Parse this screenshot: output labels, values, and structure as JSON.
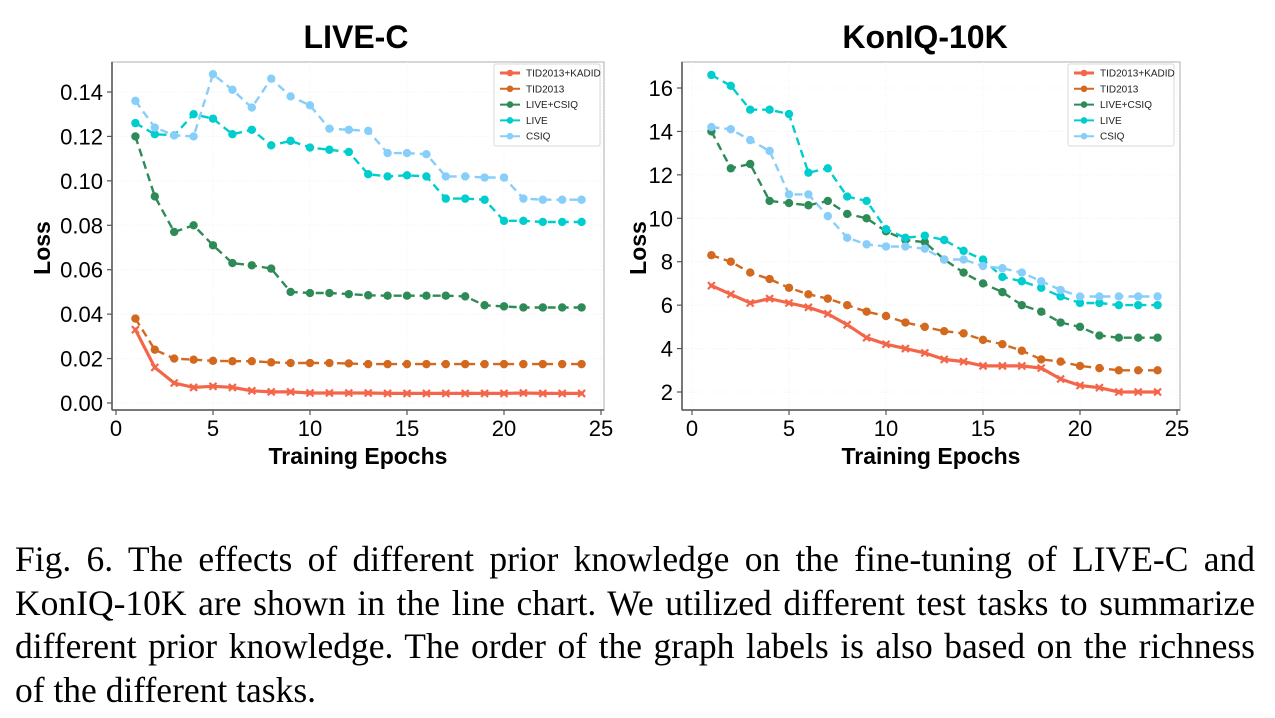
{
  "caption": "Fig. 6.  The effects of different prior knowledge on the fine-tuning of LIVE-C and KonIQ-10K are shown in the line chart. We utilized different test tasks to summarize different prior knowledge. The order of the graph labels is also based on the richness of the different tasks.",
  "chart_data": [
    {
      "type": "line",
      "title": "LIVE-C",
      "xlabel": "Training Epochs",
      "ylabel": "Loss",
      "xlim": [
        0,
        25
      ],
      "ylim": [
        0.0,
        0.15
      ],
      "xticks": [
        0,
        5,
        10,
        15,
        20,
        25
      ],
      "xtick_labels": [
        "0",
        "5",
        "10",
        "15",
        "20",
        "25"
      ],
      "yticks": [
        0.0,
        0.02,
        0.04,
        0.06,
        0.08,
        0.1,
        0.12,
        0.14
      ],
      "ytick_labels": [
        "0.00",
        "0.02",
        "0.04",
        "0.06",
        "0.08",
        "0.10",
        "0.12",
        "0.14"
      ],
      "grid": true,
      "legend_position": "top-right",
      "x": [
        1,
        2,
        3,
        4,
        5,
        6,
        7,
        8,
        9,
        10,
        11,
        12,
        13,
        14,
        15,
        16,
        17,
        18,
        19,
        20,
        21,
        22,
        23,
        24
      ],
      "series": [
        {
          "name": "TID2013+KADID",
          "color": "#f4664a",
          "style": "solid",
          "marker": "x",
          "values": [
            0.033,
            0.016,
            0.009,
            0.007,
            0.0075,
            0.007,
            0.0055,
            0.005,
            0.005,
            0.0045,
            0.0045,
            0.0045,
            0.0045,
            0.0043,
            0.0043,
            0.0043,
            0.0043,
            0.0043,
            0.0043,
            0.0043,
            0.0045,
            0.0043,
            0.0043,
            0.0043
          ]
        },
        {
          "name": "TID2013",
          "color": "#d2691e",
          "style": "dashed",
          "marker": "o",
          "values": [
            0.038,
            0.024,
            0.02,
            0.0195,
            0.019,
            0.0188,
            0.0188,
            0.0183,
            0.018,
            0.018,
            0.018,
            0.0178,
            0.0175,
            0.0175,
            0.0175,
            0.0175,
            0.0175,
            0.0175,
            0.0175,
            0.0175,
            0.0175,
            0.0175,
            0.0175,
            0.0175
          ]
        },
        {
          "name": "LIVE+CSIQ",
          "color": "#2e8b57",
          "style": "dashed",
          "marker": "o",
          "values": [
            0.12,
            0.093,
            0.077,
            0.08,
            0.071,
            0.063,
            0.062,
            0.0605,
            0.05,
            0.0495,
            0.0495,
            0.049,
            0.0485,
            0.0483,
            0.0483,
            0.0483,
            0.0483,
            0.048,
            0.044,
            0.0435,
            0.043,
            0.043,
            0.043,
            0.043
          ]
        },
        {
          "name": "LIVE",
          "color": "#00cdcd",
          "style": "dashed",
          "marker": "o",
          "values": [
            0.126,
            0.121,
            0.1205,
            0.13,
            0.128,
            0.121,
            0.123,
            0.116,
            0.118,
            0.115,
            0.114,
            0.113,
            0.103,
            0.102,
            0.1025,
            0.102,
            0.092,
            0.092,
            0.0915,
            0.082,
            0.082,
            0.0815,
            0.0815,
            0.0815
          ]
        },
        {
          "name": "CSIQ",
          "color": "#87cefa",
          "style": "dashed",
          "marker": "o",
          "values": [
            0.136,
            0.124,
            0.1205,
            0.12,
            0.148,
            0.141,
            0.133,
            0.146,
            0.138,
            0.134,
            0.1235,
            0.123,
            0.1225,
            0.1125,
            0.1125,
            0.112,
            0.102,
            0.102,
            0.1015,
            0.1015,
            0.092,
            0.0915,
            0.0915,
            0.0915
          ]
        }
      ]
    },
    {
      "type": "line",
      "title": "KonIQ-10K",
      "xlabel": "Training Epochs",
      "ylabel": "Loss",
      "xlim": [
        0,
        25
      ],
      "ylim": [
        1.2,
        17.0
      ],
      "xticks": [
        0,
        5,
        10,
        15,
        20,
        25
      ],
      "xtick_labels": [
        "0",
        "5",
        "10",
        "15",
        "20",
        "25"
      ],
      "yticks": [
        2,
        4,
        6,
        8,
        10,
        12,
        14,
        16
      ],
      "ytick_labels": [
        "2",
        "4",
        "6",
        "8",
        "10",
        "12",
        "14",
        "16"
      ],
      "grid": true,
      "legend_position": "top-right",
      "x": [
        1,
        2,
        3,
        4,
        5,
        6,
        7,
        8,
        9,
        10,
        11,
        12,
        13,
        14,
        15,
        16,
        17,
        18,
        19,
        20,
        21,
        22,
        23,
        24
      ],
      "series": [
        {
          "name": "TID2013+KADID",
          "color": "#f4664a",
          "style": "solid",
          "marker": "x",
          "values": [
            6.9,
            6.5,
            6.1,
            6.3,
            6.1,
            5.9,
            5.6,
            5.1,
            4.5,
            4.2,
            4.0,
            3.8,
            3.5,
            3.4,
            3.2,
            3.2,
            3.2,
            3.1,
            2.6,
            2.3,
            2.2,
            2.0,
            2.0,
            2.0
          ]
        },
        {
          "name": "TID2013",
          "color": "#d2691e",
          "style": "dashed",
          "marker": "o",
          "values": [
            8.3,
            8.0,
            7.5,
            7.2,
            6.8,
            6.5,
            6.3,
            6.0,
            5.7,
            5.5,
            5.2,
            5.0,
            4.8,
            4.7,
            4.4,
            4.2,
            3.9,
            3.5,
            3.4,
            3.2,
            3.1,
            3.0,
            3.0,
            3.0
          ]
        },
        {
          "name": "LIVE+CSIQ",
          "color": "#2e8b57",
          "style": "dashed",
          "marker": "o",
          "values": [
            14.0,
            12.3,
            12.5,
            10.8,
            10.7,
            10.6,
            10.8,
            10.2,
            10.0,
            9.4,
            9.0,
            8.9,
            8.1,
            7.5,
            7.0,
            6.6,
            6.0,
            5.7,
            5.2,
            5.0,
            4.6,
            4.5,
            4.5,
            4.5
          ]
        },
        {
          "name": "LIVE",
          "color": "#00cdcd",
          "style": "dashed",
          "marker": "o",
          "values": [
            16.6,
            16.1,
            15.0,
            15.0,
            14.8,
            12.1,
            12.3,
            11.0,
            10.8,
            9.5,
            9.1,
            9.2,
            9.0,
            8.5,
            8.1,
            7.3,
            7.1,
            6.8,
            6.4,
            6.1,
            6.1,
            6.0,
            6.0,
            6.0
          ]
        },
        {
          "name": "CSIQ",
          "color": "#87cefa",
          "style": "dashed",
          "marker": "o",
          "values": [
            14.2,
            14.1,
            13.6,
            13.1,
            11.1,
            11.1,
            10.1,
            9.1,
            8.8,
            8.7,
            8.7,
            8.6,
            8.1,
            8.1,
            7.8,
            7.7,
            7.5,
            7.1,
            6.7,
            6.4,
            6.4,
            6.4,
            6.4,
            6.4
          ]
        }
      ]
    }
  ]
}
